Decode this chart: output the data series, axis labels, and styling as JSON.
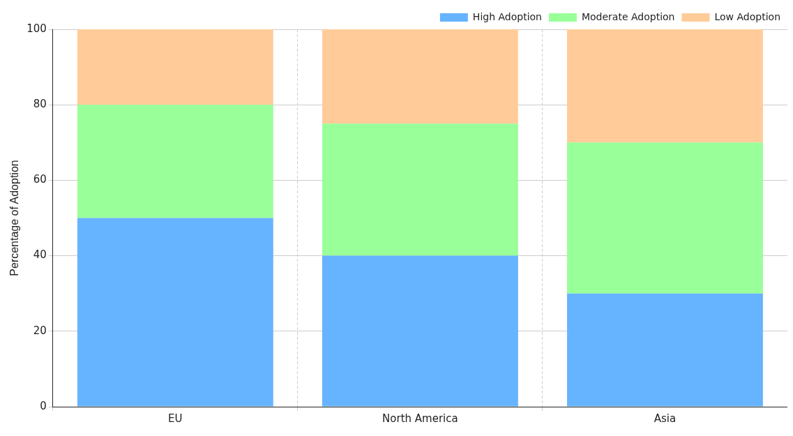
{
  "chart_data": {
    "type": "bar",
    "ylabel": "Percentage of Adoption",
    "categories": [
      "EU",
      "North America",
      "Asia"
    ],
    "stacked": true,
    "series": [
      {
        "name": "High Adoption",
        "color": "#66b3ff",
        "values": [
          50,
          40,
          30
        ]
      },
      {
        "name": "Moderate Adoption",
        "color": "#99ff99",
        "values": [
          30,
          35,
          40
        ]
      },
      {
        "name": "Low Adoption",
        "color": "#ffcc99",
        "values": [
          20,
          25,
          30
        ]
      }
    ],
    "ylim": [
      0,
      100
    ],
    "yticks": [
      0,
      20,
      40,
      60,
      80,
      100
    ],
    "grid": true,
    "legend": "top right"
  }
}
